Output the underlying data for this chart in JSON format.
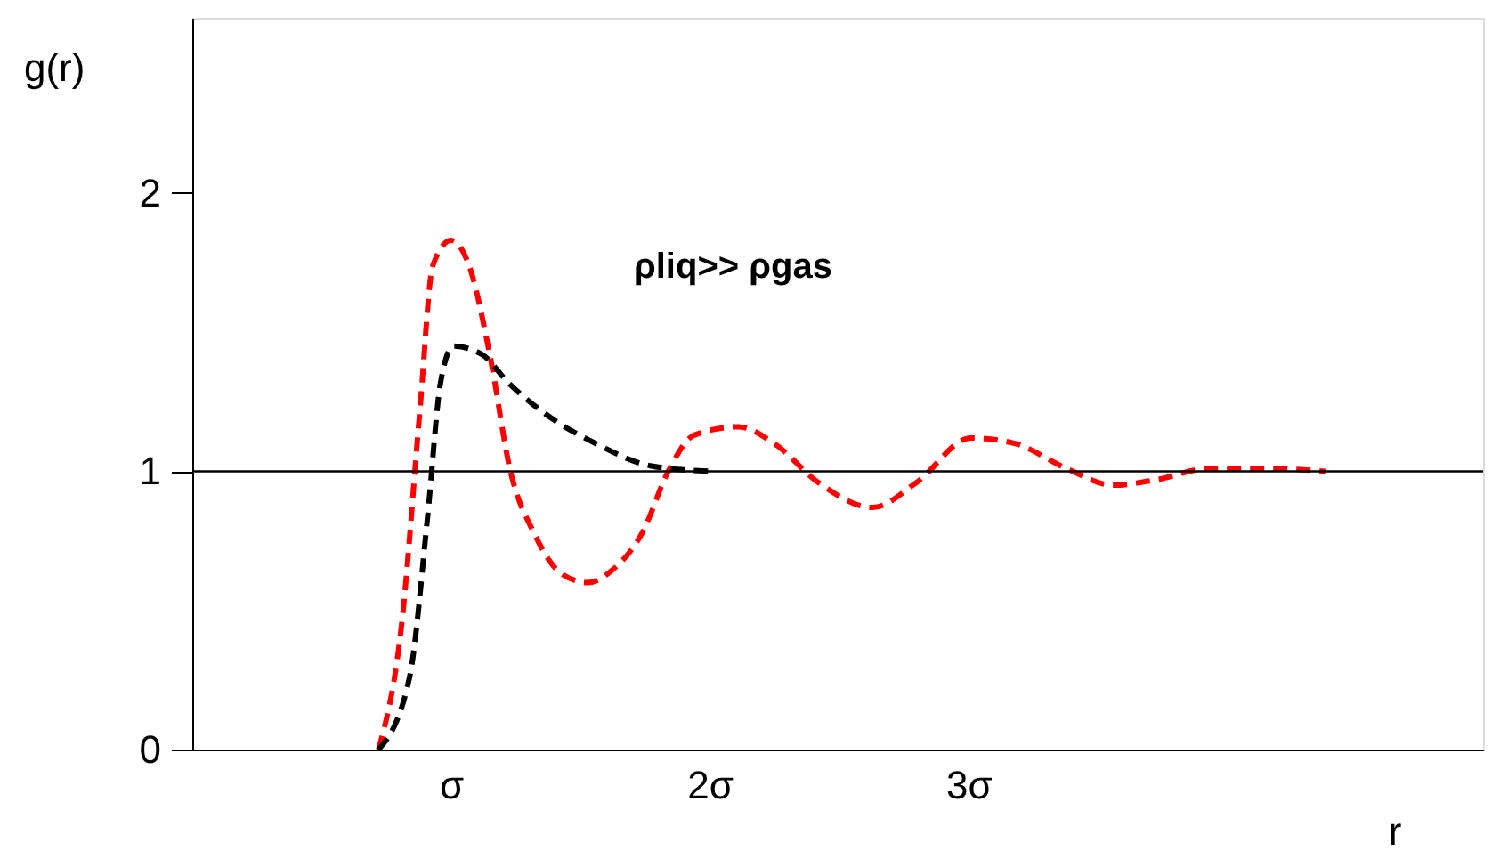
{
  "chart_data": {
    "type": "line",
    "xlabel": "r",
    "ylabel": "g(r)",
    "xlim": [
      0,
      4.99
    ],
    "ylim": [
      0,
      2.63
    ],
    "xticks": [
      {
        "value": 1,
        "label": "σ"
      },
      {
        "value": 2,
        "label": "2σ"
      },
      {
        "value": 3,
        "label": "3σ"
      }
    ],
    "yticks": [
      0,
      1,
      2
    ],
    "grid": false,
    "line_style": "dashed",
    "marker": "none",
    "annotations": [
      "ρliq>> ρgas"
    ],
    "ref_lines": [
      {
        "axis": "y",
        "value": 1,
        "color": "#000000"
      }
    ],
    "series": [
      {
        "color": "#ff0000",
        "x": [
          0.72,
          0.81,
          0.88,
          0.93,
          1.0,
          1.07,
          1.15,
          1.23,
          1.32,
          1.43,
          1.53,
          1.63,
          1.74,
          1.84,
          1.94,
          2.11,
          2.25,
          2.42,
          2.63,
          2.8,
          3.01,
          3.18,
          3.38,
          3.56,
          3.73,
          3.93,
          4.17,
          4.38
        ],
        "values": [
          0,
          0.455,
          1.22,
          1.74,
          1.83,
          1.74,
          1.42,
          1.0,
          0.78,
          0.63,
          0.6,
          0.65,
          0.78,
          1.0,
          1.13,
          1.16,
          1.1,
          0.96,
          0.87,
          0.96,
          1.12,
          1.1,
          1.01,
          0.95,
          0.97,
          1.01,
          1.01,
          1.0
        ]
      },
      {
        "color": "#000000",
        "x": [
          0.72,
          0.84,
          0.91,
          0.96,
          1.01,
          1.12,
          1.22,
          1.39,
          1.56,
          1.77,
          2.0
        ],
        "values": [
          0,
          0.26,
          0.84,
          1.32,
          1.45,
          1.42,
          1.32,
          1.19,
          1.1,
          1.02,
          1.0
        ]
      }
    ]
  }
}
